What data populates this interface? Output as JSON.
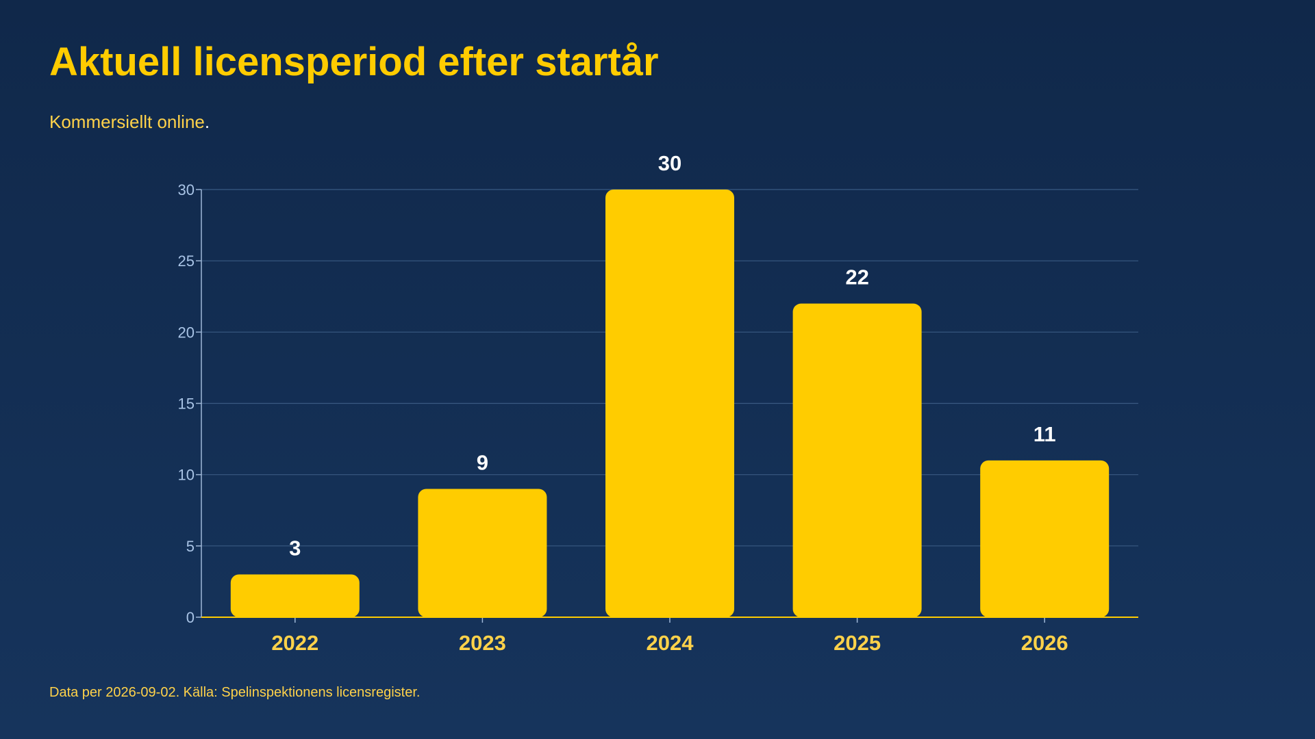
{
  "title": "Aktuell licensperiod efter startår",
  "subtitle": "Kommersiellt online",
  "subtitle_punct": ".",
  "footer": "Data per 2026-09-02. Källa: Spelinspektionens licensregister.",
  "colors": {
    "background_top": "#10284a",
    "background_bottom": "#16345c",
    "bar": "#ffcc00",
    "title": "#ffcc00",
    "axis_x": "#ffcc00",
    "data_label": "#ffffff"
  },
  "chart_data": {
    "type": "bar",
    "categories": [
      "2022",
      "2023",
      "2024",
      "2025",
      "2026"
    ],
    "values": [
      3,
      9,
      30,
      22,
      11
    ],
    "ylim": [
      0,
      30
    ],
    "yticks": [
      0,
      5,
      10,
      15,
      20,
      25,
      30
    ],
    "grid": true,
    "data_labels": true,
    "xlabel": "",
    "ylabel": ""
  }
}
